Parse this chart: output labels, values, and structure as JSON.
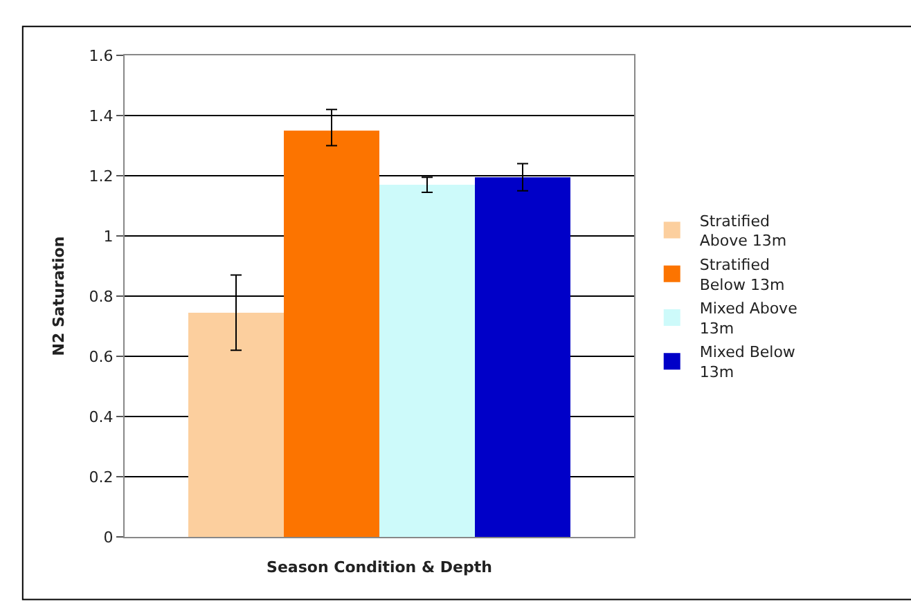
{
  "chart_data": {
    "type": "bar",
    "xlabel": "Season Condition & Depth",
    "ylabel": "N2 Saturation",
    "categories": [
      null
    ],
    "series": [
      {
        "name": "Stratified Above 13m",
        "color": "#fccf9e",
        "values": [
          0.745
        ],
        "errors": [
          [
            0.62,
            0.87
          ]
        ]
      },
      {
        "name": "Stratified Below 13m",
        "color": "#fc7400",
        "values": [
          1.35
        ],
        "errors": [
          [
            1.3,
            1.42
          ]
        ]
      },
      {
        "name": "Mixed Above 13m",
        "color": "#cdfafa",
        "values": [
          1.17
        ],
        "errors": [
          [
            1.145,
            1.195
          ]
        ]
      },
      {
        "name": "Mixed Below 13m",
        "color": "#0000c8",
        "values": [
          1.195
        ],
        "errors": [
          [
            1.15,
            1.24
          ]
        ]
      }
    ],
    "ylim": [
      0,
      1.6
    ],
    "yticks": [
      0,
      0.2,
      0.4,
      0.6,
      0.8,
      1,
      1.2,
      1.4,
      1.6
    ],
    "grid": "y",
    "legend": "right"
  }
}
